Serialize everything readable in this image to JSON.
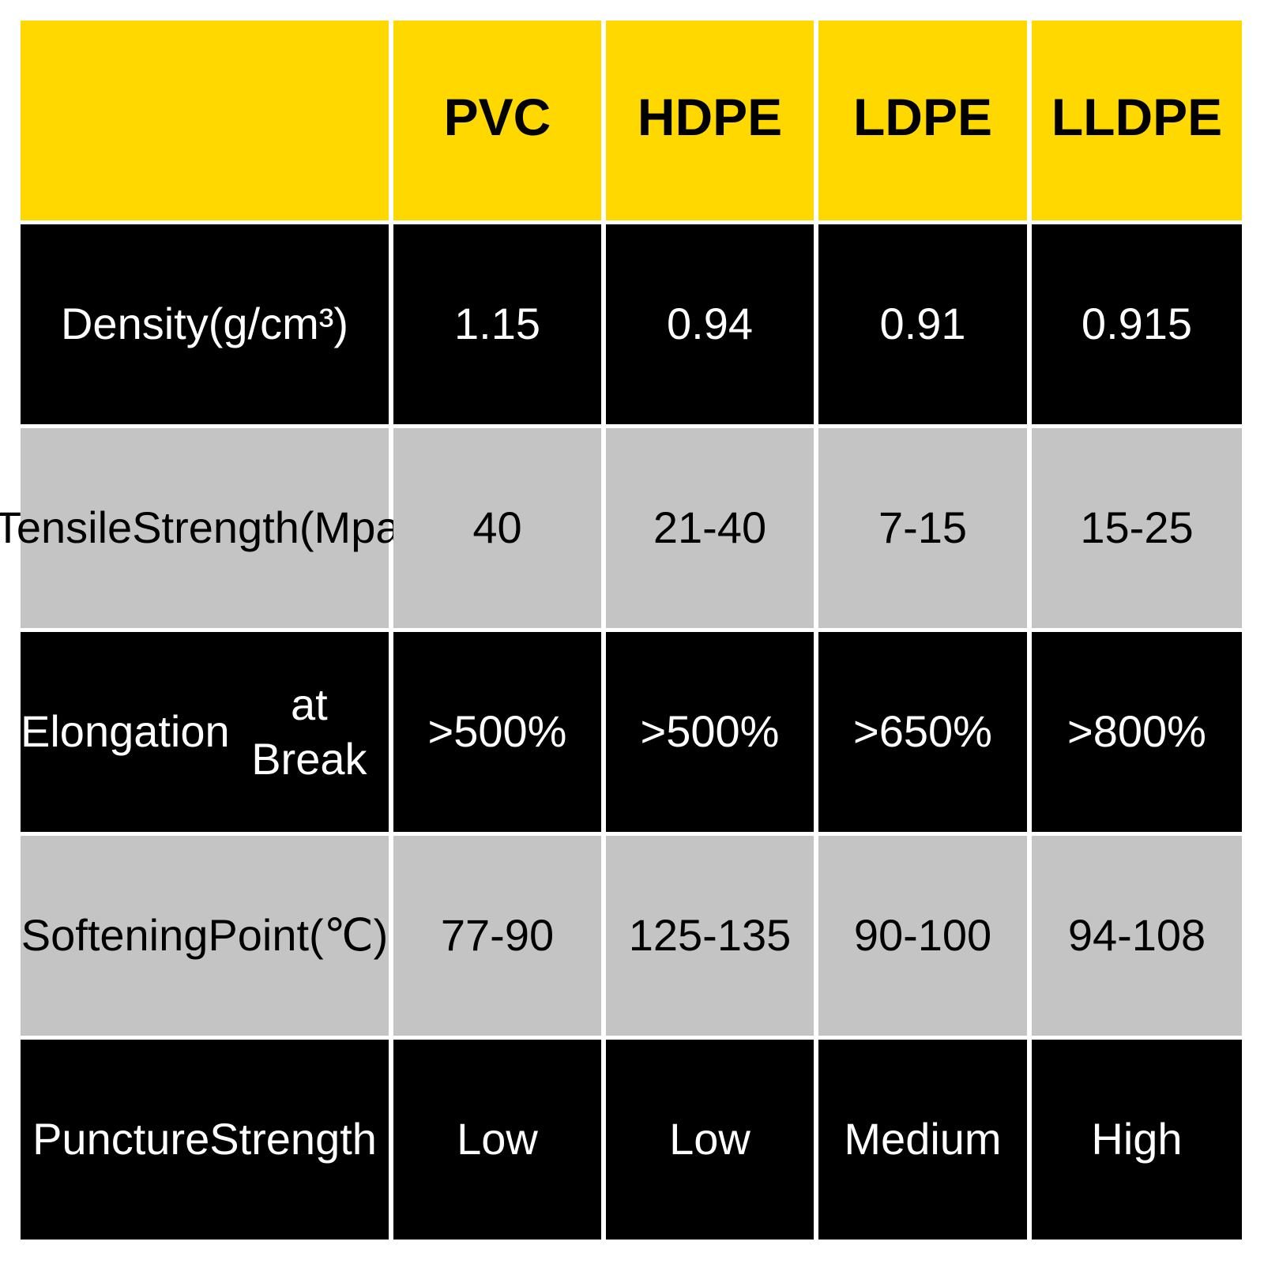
{
  "colors": {
    "header": "#FFD800",
    "dark_row": "#000000",
    "light_row": "#C4C4C4"
  },
  "columns": [
    "",
    "PVC",
    "HDPE",
    "LDPE",
    "LLDPE"
  ],
  "rows": [
    {
      "label": [
        "Density(g/cm³)"
      ],
      "values": [
        "1.15",
        "0.94",
        "0.91",
        "0.915"
      ]
    },
    {
      "label": [
        "Tensile",
        "Strength(Mpa)"
      ],
      "values": [
        "40",
        "21-40",
        "7-15",
        "15-25"
      ]
    },
    {
      "label": [
        "Elongation",
        "at Break"
      ],
      "values": [
        ">500%",
        ">500%",
        ">650%",
        ">800%"
      ]
    },
    {
      "label": [
        "Softening",
        "Point(℃)"
      ],
      "values": [
        "77-90",
        "125-135",
        "90-100",
        "94-108"
      ]
    },
    {
      "label": [
        "Puncture",
        "Strength"
      ],
      "values": [
        "Low",
        "Low",
        "Medium",
        "High"
      ]
    }
  ]
}
